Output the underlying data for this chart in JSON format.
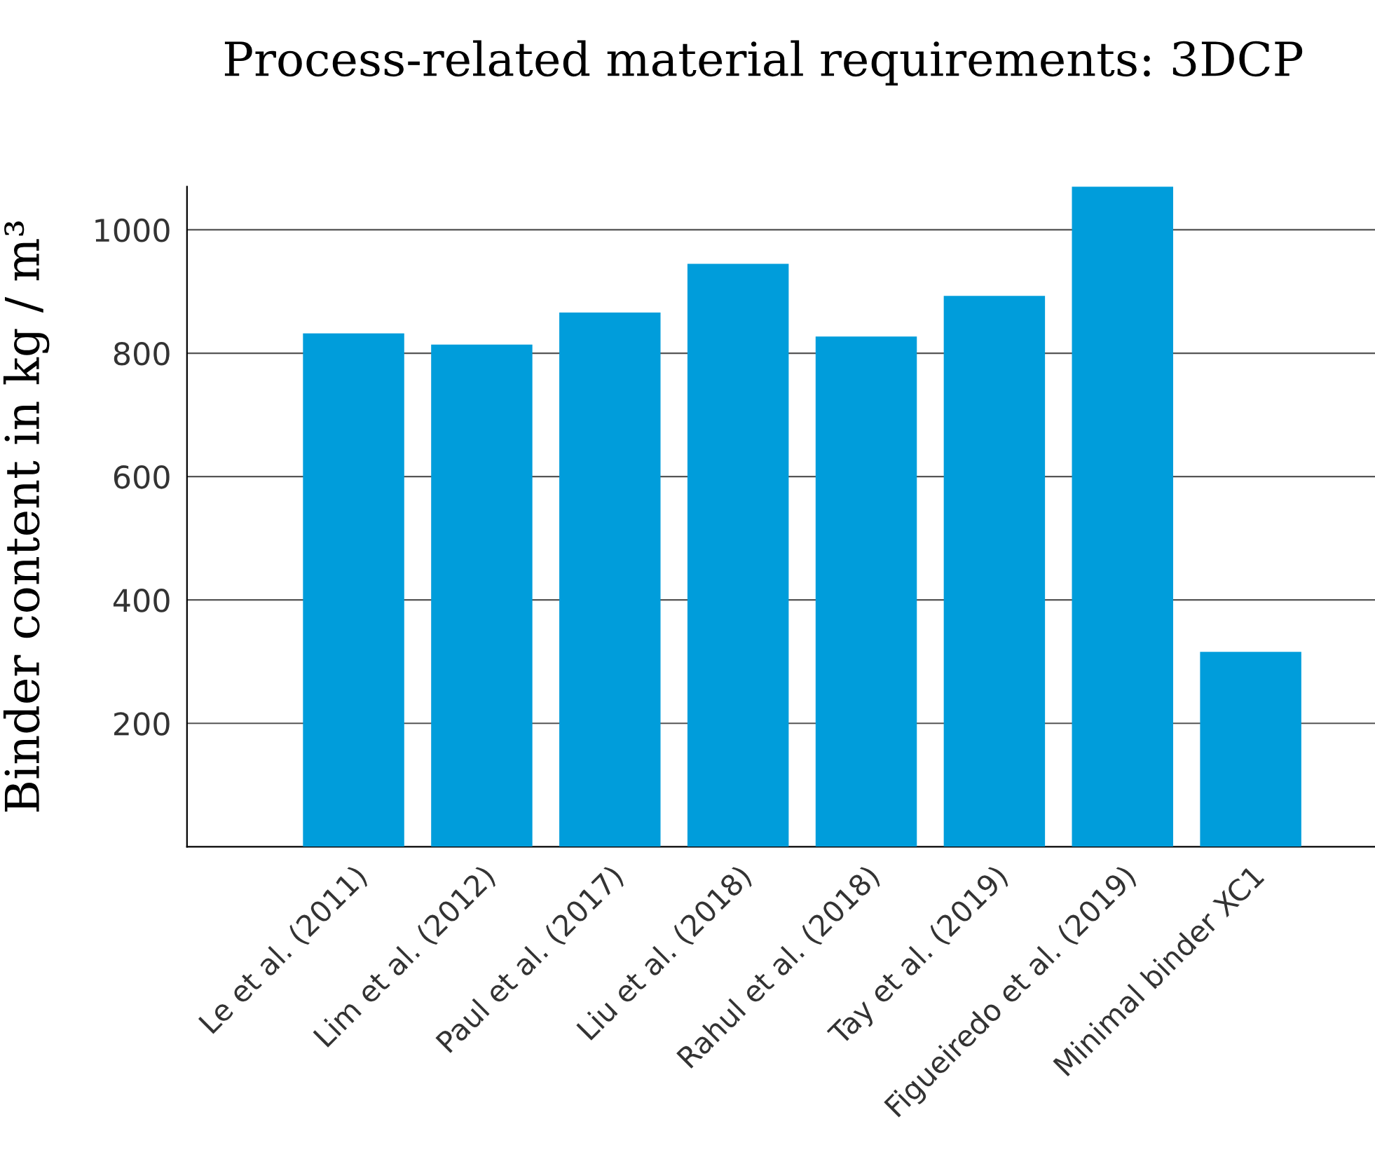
{
  "chart_data": {
    "type": "bar",
    "title": "Process-related material requirements: 3DCP",
    "ylabel": "Binder content in kg / m³",
    "categories": [
      "Le et al. (2011)",
      "Lim et al. (2012)",
      "Paul et al. (2017)",
      "Liu et al. (2018)",
      "Rahul et al. (2018)",
      "Tay et al. (2019)",
      "Figueiredo et al. (2019)",
      "Minimal binder XC1"
    ],
    "values": [
      832,
      814,
      866,
      945,
      827,
      893,
      1070,
      316
    ],
    "color": "#009ddb",
    "ylim": [
      0,
      1070
    ],
    "yticks": [
      200,
      400,
      600,
      800,
      1000
    ],
    "grid": "y"
  }
}
